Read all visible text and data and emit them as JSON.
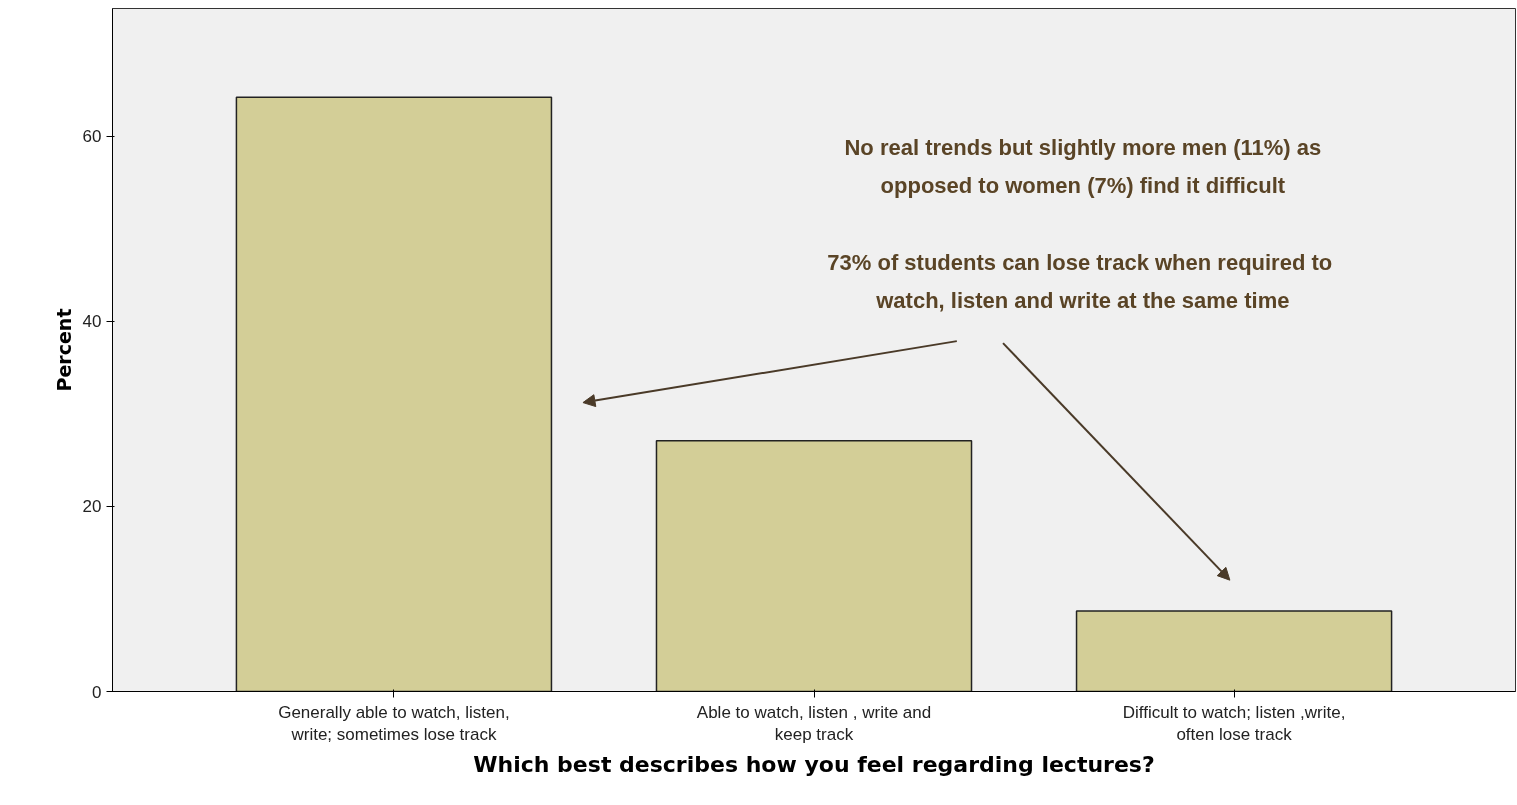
{
  "chart_data": {
    "type": "bar",
    "xlabel": "Which best describes how you feel regarding lectures?",
    "ylabel": "Percent",
    "categories": [
      "Generally able to watch, listen, write; sometimes lose track",
      "Able to watch, listen , write and keep track",
      "Difficult to watch; listen ,write, often lose track"
    ],
    "values": [
      64.2,
      27.1,
      8.7
    ],
    "color": "#d3ce97",
    "ylim": [
      0,
      73.8
    ],
    "yticks": [
      0,
      20,
      40,
      60
    ],
    "grid": false,
    "annotations": [
      "No real trends but slightly more men (11%) as opposed to women (7%) find it difficult",
      "73% of students can lose  track when required to watch, listen and write at the same time"
    ]
  }
}
